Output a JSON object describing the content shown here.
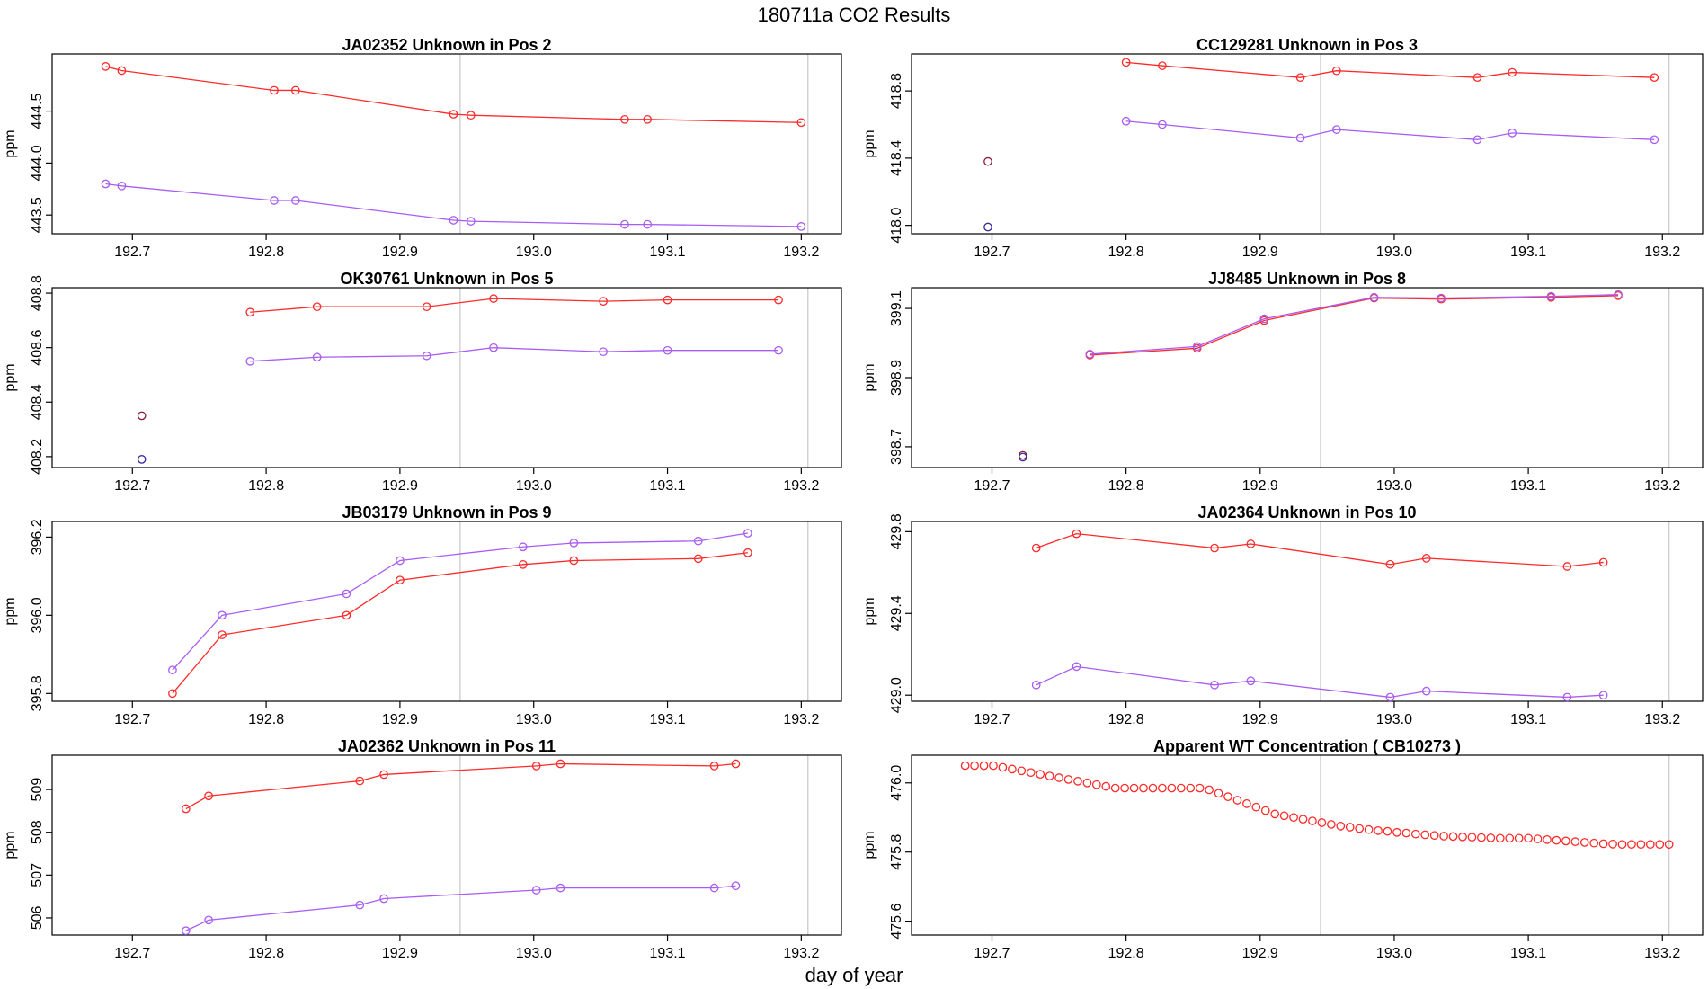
{
  "figure": {
    "title": "180711a  CO2 Results",
    "xlabel": "day of year"
  },
  "colors": {
    "series1": "#ff2a2a",
    "series2": "#a85cf5",
    "axis": "#000000",
    "vline": "#c8c8c8",
    "dark": "#3a0040"
  },
  "chart_data": [
    {
      "type": "line",
      "title": "JA02352    Unknown in Pos 2",
      "ylabel": "ppm",
      "xlim": [
        192.64,
        193.23
      ],
      "ylim": [
        443.32,
        445.05
      ],
      "yticks": [
        443.5,
        444.0,
        444.5
      ],
      "ytick_labels": [
        "443.5",
        "444.0",
        "444.5"
      ],
      "xticks": [
        192.7,
        192.8,
        192.9,
        193.0,
        193.1,
        193.2
      ],
      "xtick_labels": [
        "192.7",
        "192.8",
        "192.9",
        "193.0",
        "193.1",
        "193.2"
      ],
      "vlines": [
        192.945,
        193.205
      ],
      "series": [
        {
          "name": "s1",
          "color": "#ff2a2a",
          "lines": true,
          "x": [
            192.68,
            192.692,
            192.806,
            192.822,
            192.94,
            192.953,
            193.068,
            193.085,
            193.2
          ],
          "y": [
            444.93,
            444.89,
            444.7,
            444.7,
            444.47,
            444.46,
            444.42,
            444.42,
            444.39
          ]
        },
        {
          "name": "s2",
          "color": "#a85cf5",
          "lines": true,
          "x": [
            192.68,
            192.692,
            192.806,
            192.822,
            192.94,
            192.953,
            193.068,
            193.085,
            193.2
          ],
          "y": [
            443.8,
            443.78,
            443.64,
            443.64,
            443.45,
            443.44,
            443.41,
            443.41,
            443.39
          ]
        }
      ]
    },
    {
      "type": "line",
      "title": "CC129281    Unknown in Pos 3",
      "ylabel": "ppm",
      "xlim": [
        192.64,
        193.23
      ],
      "ylim": [
        417.95,
        419.02
      ],
      "yticks": [
        418.0,
        418.4,
        418.8
      ],
      "ytick_labels": [
        "418.0",
        "418.4",
        "418.8"
      ],
      "xticks": [
        192.7,
        192.8,
        192.9,
        193.0,
        193.1,
        193.2
      ],
      "xtick_labels": [
        "192.7",
        "192.8",
        "192.9",
        "193.0",
        "193.1",
        "193.2"
      ],
      "vlines": [
        192.945,
        193.205
      ],
      "series": [
        {
          "name": "s1",
          "color": "#ff2a2a",
          "lines": true,
          "x": [
            192.8,
            192.827,
            192.93,
            192.957,
            193.062,
            193.088,
            193.194
          ],
          "y": [
            418.97,
            418.95,
            418.88,
            418.92,
            418.88,
            418.91,
            418.88
          ]
        },
        {
          "name": "s2",
          "color": "#a85cf5",
          "lines": true,
          "x": [
            192.8,
            192.827,
            192.93,
            192.957,
            193.062,
            193.088,
            193.194
          ],
          "y": [
            418.62,
            418.6,
            418.52,
            418.57,
            418.51,
            418.55,
            418.51
          ]
        },
        {
          "name": "s3",
          "color": "#8b1a3a",
          "lines": false,
          "x": [
            192.697
          ],
          "y": [
            418.38
          ]
        },
        {
          "name": "s4",
          "color": "#3a2a9a",
          "lines": false,
          "x": [
            192.697
          ],
          "y": [
            417.99
          ]
        }
      ]
    },
    {
      "type": "line",
      "title": "OK30761    Unknown in Pos 5",
      "ylabel": "ppm",
      "xlim": [
        192.64,
        193.23
      ],
      "ylim": [
        408.16,
        408.82
      ],
      "yticks": [
        408.2,
        408.4,
        408.6,
        408.8
      ],
      "ytick_labels": [
        "408.2",
        "408.4",
        "408.6",
        "408.8"
      ],
      "xticks": [
        192.7,
        192.8,
        192.9,
        193.0,
        193.1,
        193.2
      ],
      "xtick_labels": [
        "192.7",
        "192.8",
        "192.9",
        "193.0",
        "193.1",
        "193.2"
      ],
      "vlines": [
        192.945,
        193.205
      ],
      "series": [
        {
          "name": "s1",
          "color": "#ff2a2a",
          "lines": true,
          "x": [
            192.788,
            192.838,
            192.92,
            192.97,
            193.052,
            193.1,
            193.183
          ],
          "y": [
            408.73,
            408.75,
            408.75,
            408.78,
            408.77,
            408.775,
            408.775
          ]
        },
        {
          "name": "s2",
          "color": "#a85cf5",
          "lines": true,
          "x": [
            192.788,
            192.838,
            192.92,
            192.97,
            193.052,
            193.1,
            193.183
          ],
          "y": [
            408.55,
            408.565,
            408.57,
            408.6,
            408.585,
            408.59,
            408.59
          ]
        },
        {
          "name": "s3",
          "color": "#8b1a3a",
          "lines": false,
          "x": [
            192.707
          ],
          "y": [
            408.35
          ]
        },
        {
          "name": "s4",
          "color": "#3a2a9a",
          "lines": false,
          "x": [
            192.707
          ],
          "y": [
            408.19
          ]
        }
      ]
    },
    {
      "type": "line",
      "title": "JJ8485    Unknown in Pos 8",
      "ylabel": "ppm",
      "xlim": [
        192.64,
        193.23
      ],
      "ylim": [
        398.64,
        399.16
      ],
      "yticks": [
        398.7,
        398.9,
        399.1
      ],
      "ytick_labels": [
        "398.7",
        "398.9",
        "399.1"
      ],
      "xticks": [
        192.7,
        192.8,
        192.9,
        193.0,
        193.1,
        193.2
      ],
      "xtick_labels": [
        "192.7",
        "192.8",
        "192.9",
        "193.0",
        "193.1",
        "193.2"
      ],
      "vlines": [
        192.945,
        193.205
      ],
      "series": [
        {
          "name": "s1",
          "color": "#ff2a2a",
          "lines": true,
          "x": [
            192.773,
            192.853,
            192.903,
            192.985,
            193.035,
            193.117,
            193.167
          ],
          "y": [
            398.965,
            398.985,
            399.065,
            399.13,
            399.127,
            399.132,
            399.137
          ]
        },
        {
          "name": "s2",
          "color": "#a85cf5",
          "lines": true,
          "x": [
            192.773,
            192.853,
            192.903,
            192.985,
            193.035,
            193.117,
            193.167
          ],
          "y": [
            398.968,
            398.99,
            399.07,
            399.132,
            399.13,
            399.135,
            399.14
          ]
        },
        {
          "name": "s3",
          "color": "#8b1a3a",
          "lines": false,
          "x": [
            192.723
          ],
          "y": [
            398.675
          ]
        },
        {
          "name": "s4",
          "color": "#3a2a9a",
          "lines": false,
          "x": [
            192.723
          ],
          "y": [
            398.67
          ]
        }
      ]
    },
    {
      "type": "line",
      "title": "JB03179    Unknown in Pos 9",
      "ylabel": "ppm",
      "xlim": [
        192.64,
        193.23
      ],
      "ylim": [
        395.78,
        396.24
      ],
      "yticks": [
        395.8,
        396.0,
        396.2
      ],
      "ytick_labels": [
        "395.8",
        "396.0",
        "396.2"
      ],
      "xticks": [
        192.7,
        192.8,
        192.9,
        193.0,
        193.1,
        193.2
      ],
      "xtick_labels": [
        "192.7",
        "192.8",
        "192.9",
        "193.0",
        "193.1",
        "193.2"
      ],
      "vlines": [
        192.945,
        193.205
      ],
      "series": [
        {
          "name": "s1",
          "color": "#ff2a2a",
          "lines": true,
          "x": [
            192.73,
            192.767,
            192.86,
            192.9,
            192.992,
            193.03,
            193.123,
            193.16
          ],
          "y": [
            395.8,
            395.95,
            396.0,
            396.09,
            396.13,
            396.14,
            396.145,
            396.16
          ]
        },
        {
          "name": "s2",
          "color": "#a85cf5",
          "lines": true,
          "x": [
            192.73,
            192.767,
            192.86,
            192.9,
            192.992,
            193.03,
            193.123,
            193.16
          ],
          "y": [
            395.86,
            396.0,
            396.055,
            396.14,
            396.175,
            396.185,
            396.19,
            396.21
          ]
        }
      ]
    },
    {
      "type": "line",
      "title": "JA02364    Unknown in Pos 10",
      "ylabel": "ppm",
      "xlim": [
        192.64,
        193.23
      ],
      "ylim": [
        428.97,
        429.85
      ],
      "yticks": [
        429.0,
        429.4,
        429.8
      ],
      "ytick_labels": [
        "429.0",
        "429.4",
        "429.8"
      ],
      "xticks": [
        192.7,
        192.8,
        192.9,
        193.0,
        193.1,
        193.2
      ],
      "xtick_labels": [
        "192.7",
        "192.8",
        "192.9",
        "193.0",
        "193.1",
        "193.2"
      ],
      "vlines": [
        192.945,
        193.205
      ],
      "series": [
        {
          "name": "s1",
          "color": "#ff2a2a",
          "lines": true,
          "x": [
            192.733,
            192.763,
            192.866,
            192.893,
            192.997,
            193.024,
            193.129,
            193.156
          ],
          "y": [
            429.72,
            429.79,
            429.72,
            429.74,
            429.64,
            429.67,
            429.63,
            429.65
          ]
        },
        {
          "name": "s2",
          "color": "#a85cf5",
          "lines": true,
          "x": [
            192.733,
            192.763,
            192.866,
            192.893,
            192.997,
            193.024,
            193.129,
            193.156
          ],
          "y": [
            429.05,
            429.14,
            429.05,
            429.07,
            428.99,
            429.02,
            428.99,
            429.0
          ]
        }
      ]
    },
    {
      "type": "line",
      "title": "JA02362    Unknown in Pos 11",
      "ylabel": "ppm",
      "xlim": [
        192.64,
        193.23
      ],
      "ylim": [
        505.6,
        509.8
      ],
      "yticks": [
        506,
        507,
        508,
        509
      ],
      "ytick_labels": [
        "506",
        "507",
        "508",
        "509"
      ],
      "xticks": [
        192.7,
        192.8,
        192.9,
        193.0,
        193.1,
        193.2
      ],
      "xtick_labels": [
        "192.7",
        "192.8",
        "192.9",
        "193.0",
        "193.1",
        "193.2"
      ],
      "vlines": [
        192.945,
        193.205
      ],
      "series": [
        {
          "name": "s1",
          "color": "#ff2a2a",
          "lines": true,
          "x": [
            192.74,
            192.757,
            192.87,
            192.888,
            193.002,
            193.02,
            193.135,
            193.151
          ],
          "y": [
            508.55,
            508.85,
            509.2,
            509.35,
            509.55,
            509.6,
            509.55,
            509.6
          ]
        },
        {
          "name": "s2",
          "color": "#a85cf5",
          "lines": true,
          "x": [
            192.74,
            192.757,
            192.87,
            192.888,
            193.002,
            193.02,
            193.135,
            193.151
          ],
          "y": [
            505.7,
            505.95,
            506.3,
            506.45,
            506.65,
            506.7,
            506.7,
            506.75
          ]
        }
      ]
    },
    {
      "type": "scatter",
      "title": "Apparent WT Concentration ( CB10273 )",
      "ylabel": "ppm",
      "xlim": [
        192.64,
        193.23
      ],
      "ylim": [
        475.56,
        476.08
      ],
      "yticks": [
        475.6,
        475.8,
        476.0
      ],
      "ytick_labels": [
        "475.6",
        "475.8",
        "476.0"
      ],
      "xticks": [
        192.7,
        192.8,
        192.9,
        193.0,
        193.1,
        193.2
      ],
      "xtick_labels": [
        "192.7",
        "192.8",
        "192.9",
        "193.0",
        "193.1",
        "193.2"
      ],
      "vlines": [
        192.945,
        193.205
      ],
      "series": [
        {
          "name": "WT",
          "color": "#ff2a2a",
          "lines": false,
          "x": [
            192.68,
            192.687,
            192.694,
            192.701,
            192.708,
            192.715,
            192.722,
            192.729,
            192.736,
            192.743,
            192.75,
            192.757,
            192.764,
            192.771,
            192.778,
            192.785,
            192.792,
            192.799,
            192.806,
            192.813,
            192.82,
            192.827,
            192.834,
            192.841,
            192.848,
            192.855,
            192.862,
            192.869,
            192.876,
            192.883,
            192.89,
            192.897,
            192.904,
            192.911,
            192.918,
            192.925,
            192.932,
            192.939,
            192.946,
            192.953,
            192.96,
            192.967,
            192.974,
            192.981,
            192.988,
            192.995,
            193.002,
            193.009,
            193.016,
            193.023,
            193.03,
            193.037,
            193.044,
            193.051,
            193.058,
            193.065,
            193.072,
            193.079,
            193.086,
            193.093,
            193.1,
            193.107,
            193.114,
            193.121,
            193.128,
            193.135,
            193.142,
            193.149,
            193.156,
            193.163,
            193.17,
            193.177,
            193.184,
            193.191,
            193.198,
            193.205
          ],
          "y": [
            476.05,
            476.05,
            476.05,
            476.05,
            476.045,
            476.04,
            476.035,
            476.03,
            476.025,
            476.02,
            476.015,
            476.01,
            476.005,
            476.0,
            475.995,
            475.99,
            475.985,
            475.985,
            475.985,
            475.985,
            475.985,
            475.985,
            475.985,
            475.985,
            475.985,
            475.985,
            475.98,
            475.97,
            475.96,
            475.95,
            475.94,
            475.93,
            475.92,
            475.91,
            475.905,
            475.9,
            475.895,
            475.89,
            475.885,
            475.88,
            475.875,
            475.872,
            475.868,
            475.865,
            475.862,
            475.86,
            475.857,
            475.855,
            475.852,
            475.85,
            475.848,
            475.846,
            475.845,
            475.844,
            475.843,
            475.842,
            475.841,
            475.84,
            475.84,
            475.84,
            475.84,
            475.838,
            475.836,
            475.834,
            475.832,
            475.83,
            475.828,
            475.826,
            475.824,
            475.823,
            475.822,
            475.822,
            475.822,
            475.822,
            475.822,
            475.822
          ]
        }
      ]
    }
  ]
}
